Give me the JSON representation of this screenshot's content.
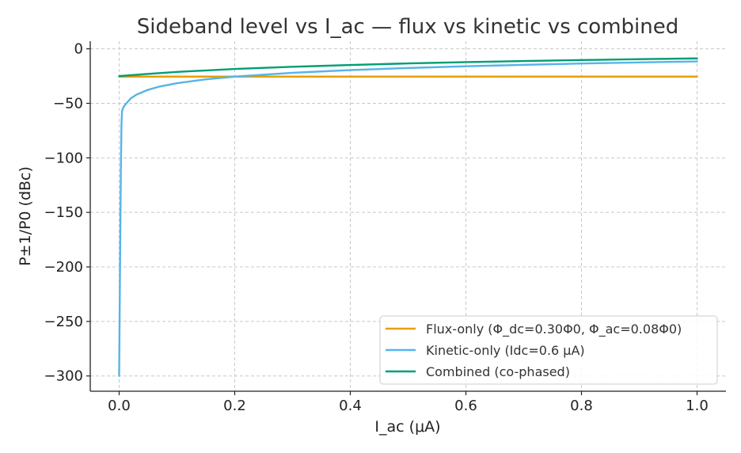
{
  "chart_data": {
    "type": "line",
    "title": "Sideband level vs I_ac — flux vs kinetic vs combined",
    "xlabel": "I_ac (μA)",
    "ylabel": "P±1/P0 (dBc)",
    "xlim": [
      -0.05,
      1.05
    ],
    "ylim": [
      -314,
      7
    ],
    "xticks": [
      0.0,
      0.2,
      0.4,
      0.6,
      0.8,
      1.0
    ],
    "xtick_labels": [
      "0.0",
      "0.2",
      "0.4",
      "0.6",
      "0.8",
      "1.0"
    ],
    "yticks": [
      0,
      -50,
      -100,
      -150,
      -200,
      -250,
      -300
    ],
    "ytick_labels": [
      "0",
      "−50",
      "−100",
      "−150",
      "−200",
      "−250",
      "−300"
    ],
    "grid": true,
    "legend_position": "bottom-right",
    "series": [
      {
        "name": "Flux-only (Φ_dc=0.30Φ0, Φ_ac=0.08Φ0)",
        "color": "#E69F00",
        "x": [
          0.0,
          1.0
        ],
        "y": [
          -25.5,
          -25.5
        ]
      },
      {
        "name": "Kinetic-only (Idc=0.6 μA)",
        "color": "#56B4E9",
        "x": [
          0.0,
          0.002,
          0.003,
          0.004,
          0.005,
          0.007,
          0.01,
          0.02,
          0.03,
          0.05,
          0.07,
          0.1,
          0.15,
          0.2,
          0.3,
          0.4,
          0.5,
          0.6,
          0.7,
          0.8,
          0.9,
          1.0
        ],
        "y": [
          -300,
          -170,
          -110,
          -70,
          -57,
          -54,
          -51.5,
          -45.5,
          -42,
          -37.6,
          -34.6,
          -31.5,
          -28,
          -25.5,
          -22,
          -19.5,
          -17.6,
          -16,
          -14.7,
          -13.5,
          -12.5,
          -11.6
        ]
      },
      {
        "name": "Combined (co-phased)",
        "color": "#009E73",
        "x": [
          0.0,
          0.05,
          0.1,
          0.2,
          0.3,
          0.4,
          0.5,
          0.6,
          0.7,
          0.8,
          0.9,
          1.0
        ],
        "y": [
          -25,
          -23,
          -21.2,
          -18.5,
          -16.5,
          -14.8,
          -13.4,
          -12.2,
          -11.2,
          -10.3,
          -9.5,
          -8.8
        ]
      }
    ]
  }
}
